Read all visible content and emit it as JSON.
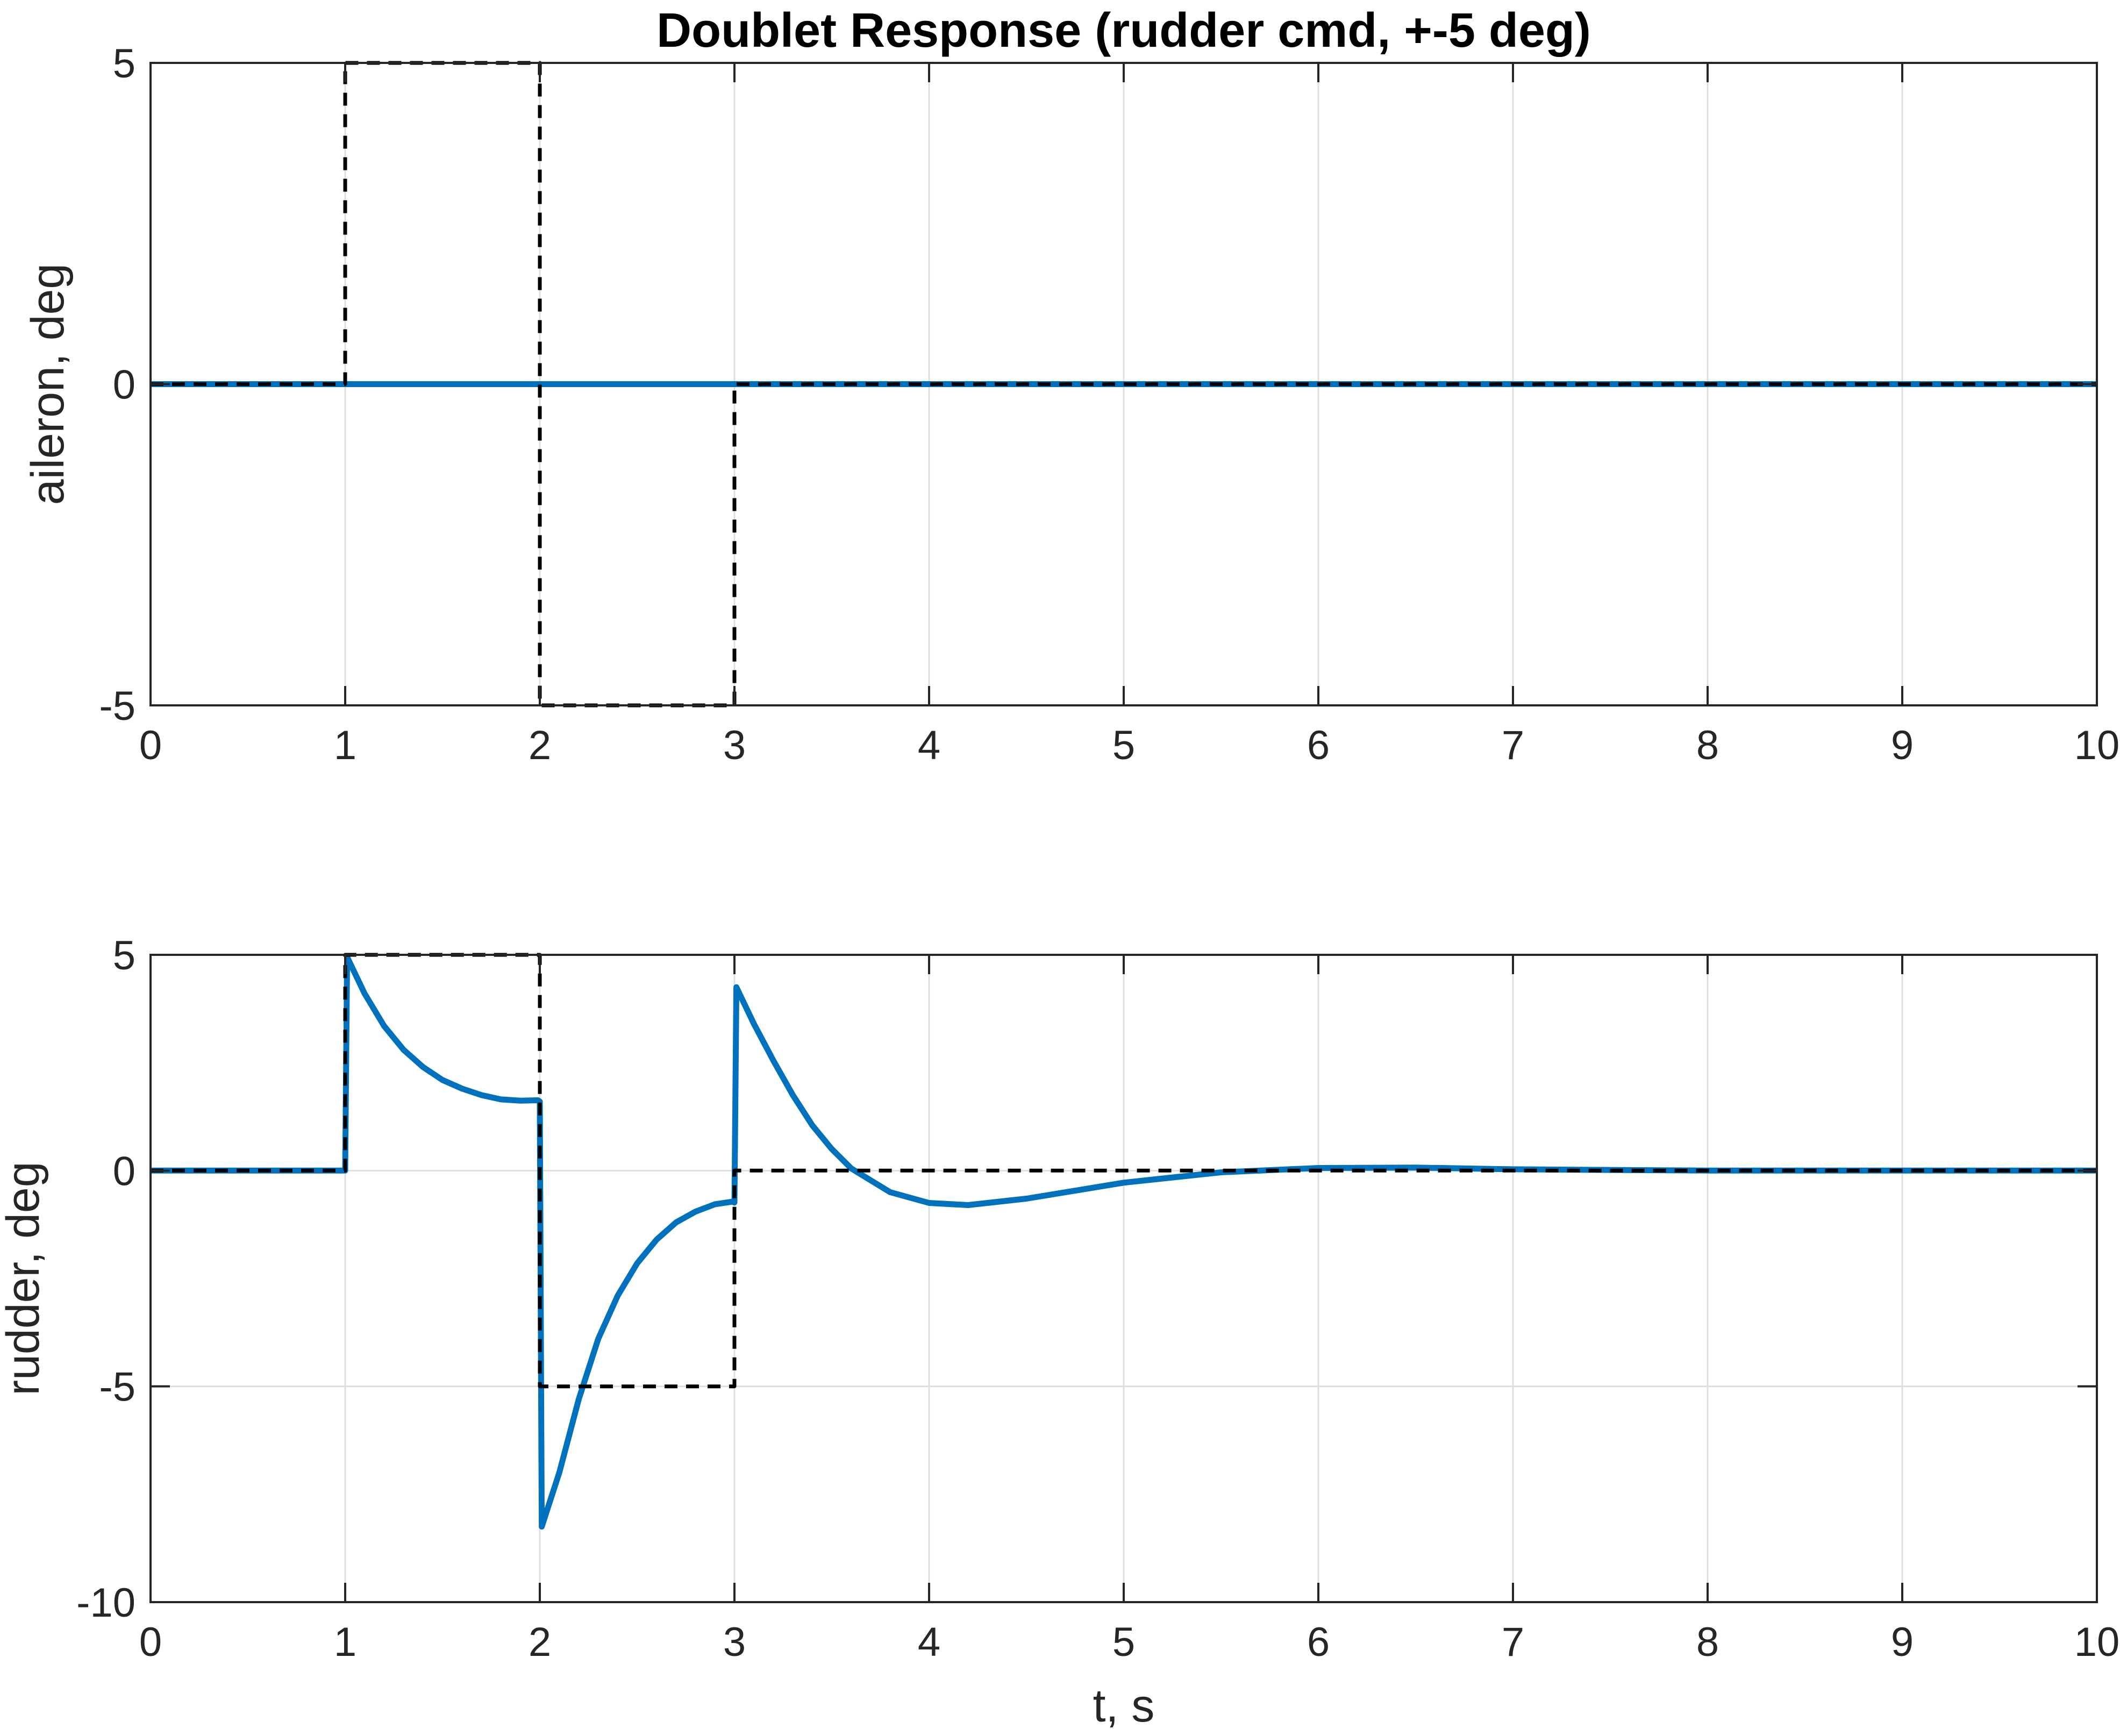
{
  "chart_data": [
    {
      "type": "line",
      "title": "Doublet Response (rudder cmd, +-5 deg)",
      "xlabel": "",
      "ylabel": "aileron, deg",
      "xlim": [
        0,
        10
      ],
      "ylim": [
        -5,
        5
      ],
      "xticks": [
        "0",
        "1",
        "2",
        "3",
        "4",
        "5",
        "6",
        "7",
        "8",
        "9",
        "10"
      ],
      "yticks": [
        "-5",
        "0",
        "5"
      ],
      "grid": true,
      "series": [
        {
          "style": "solid",
          "color": "#0072BD",
          "x": [
            0,
            10
          ],
          "y": [
            0,
            0
          ]
        },
        {
          "style": "dashed",
          "color": "#000000",
          "x": [
            0,
            1,
            1,
            2,
            2,
            3,
            3,
            10
          ],
          "y": [
            0,
            0,
            5,
            5,
            -5,
            -5,
            0,
            0
          ]
        }
      ]
    },
    {
      "type": "line",
      "title": "",
      "xlabel": "t, s",
      "ylabel": "rudder, deg",
      "xlim": [
        0,
        10
      ],
      "ylim": [
        -10,
        5
      ],
      "xticks": [
        "0",
        "1",
        "2",
        "3",
        "4",
        "5",
        "6",
        "7",
        "8",
        "9",
        "10"
      ],
      "yticks": [
        "-10",
        "-5",
        "0",
        "5"
      ],
      "grid": true,
      "series": [
        {
          "style": "solid",
          "color": "#0072BD",
          "x": [
            0,
            1,
            1.01,
            1.1,
            1.2,
            1.3,
            1.4,
            1.5,
            1.6,
            1.7,
            1.8,
            1.9,
            1.99,
            2.0,
            2.01,
            2.1,
            2.2,
            2.3,
            2.4,
            2.5,
            2.6,
            2.7,
            2.8,
            2.9,
            2.99,
            3.0,
            3.01,
            3.1,
            3.2,
            3.3,
            3.4,
            3.5,
            3.6,
            3.8,
            4.0,
            4.2,
            4.5,
            5.0,
            5.5,
            6.0,
            6.5,
            7.0,
            8.0,
            9.0,
            10.0
          ],
          "y": [
            0,
            0,
            4.95,
            4.1,
            3.35,
            2.8,
            2.4,
            2.1,
            1.9,
            1.75,
            1.65,
            1.62,
            1.63,
            1.6,
            -8.25,
            -7.0,
            -5.3,
            -3.9,
            -2.9,
            -2.15,
            -1.6,
            -1.2,
            -0.95,
            -0.78,
            -0.72,
            -0.74,
            4.25,
            3.4,
            2.55,
            1.75,
            1.05,
            0.5,
            0.05,
            -0.5,
            -0.75,
            -0.8,
            -0.65,
            -0.28,
            -0.04,
            0.06,
            0.07,
            0.03,
            0.0,
            0.0,
            0.0
          ]
        },
        {
          "style": "dashed",
          "color": "#000000",
          "x": [
            0,
            1,
            1,
            2,
            2,
            3,
            3,
            10
          ],
          "y": [
            0,
            0,
            5,
            5,
            -5,
            -5,
            0,
            0
          ]
        }
      ]
    }
  ]
}
